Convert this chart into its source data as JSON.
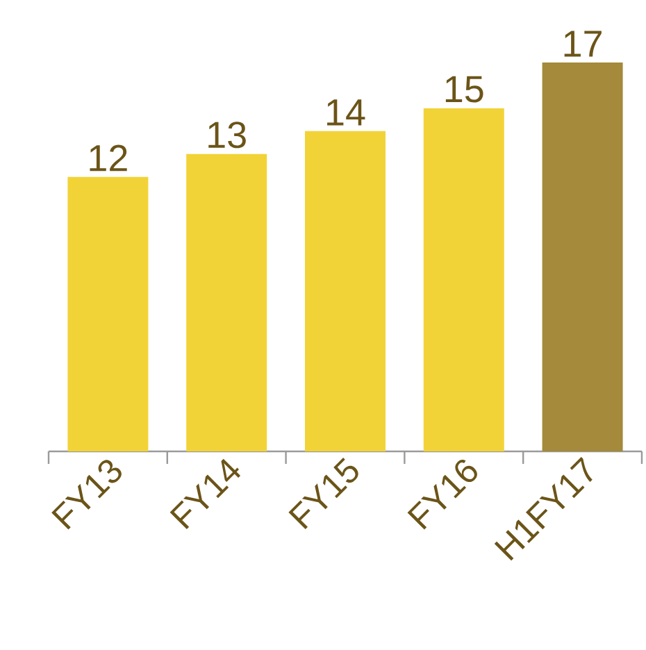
{
  "chart_data": {
    "type": "bar",
    "categories": [
      "FY13",
      "FY14",
      "FY15",
      "FY16",
      "H1FY17"
    ],
    "values": [
      12,
      13,
      14,
      15,
      17
    ],
    "colors": [
      "#f2d337",
      "#f2d337",
      "#f2d337",
      "#f2d337",
      "#a48a3a"
    ],
    "data_labels": true,
    "tick_labels": "x"
  }
}
